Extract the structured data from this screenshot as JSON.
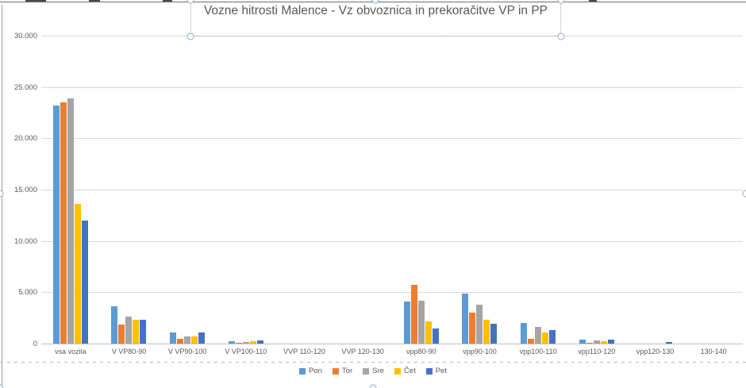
{
  "chart_data": {
    "type": "bar",
    "title": "Vozne hitrosti Malence - Vz obvoznica in prekoračitve VP in PP",
    "xlabel": "",
    "ylabel": "",
    "ylim": [
      0,
      30000
    ],
    "grid": true,
    "legend_position": "bottom",
    "yticks": [
      {
        "value": 0,
        "label": "0"
      },
      {
        "value": 5000,
        "label": "5.000"
      },
      {
        "value": 10000,
        "label": "10.000"
      },
      {
        "value": 15000,
        "label": "15.000"
      },
      {
        "value": 20000,
        "label": "20.000"
      },
      {
        "value": 25000,
        "label": "25.000"
      },
      {
        "value": 30000,
        "label": "30.000"
      }
    ],
    "categories": [
      "vsa vozila",
      "V VP80-90",
      "V VP90-100",
      "V VP100-110",
      "VVP 110-120",
      "VVP 120-130",
      "vpp80-90",
      "vpp90-100",
      "vpp100-110",
      "vpp110-120",
      "vpp120-130",
      "130-140"
    ],
    "series": [
      {
        "name": "Pon",
        "color": "#5B9BD5",
        "values": [
          23200,
          3600,
          1100,
          250,
          0,
          0,
          4100,
          4900,
          2000,
          400,
          0,
          0
        ]
      },
      {
        "name": "Tor",
        "color": "#ED7D31",
        "values": [
          23500,
          1850,
          500,
          50,
          0,
          0,
          5700,
          3000,
          500,
          50,
          0,
          0
        ]
      },
      {
        "name": "Sre",
        "color": "#A5A5A5",
        "values": [
          23900,
          2650,
          700,
          150,
          0,
          0,
          4200,
          3800,
          1650,
          300,
          0,
          0
        ]
      },
      {
        "name": "Čet",
        "color": "#FFC000",
        "values": [
          13600,
          2350,
          700,
          200,
          0,
          0,
          2200,
          2300,
          1050,
          250,
          0,
          0
        ]
      },
      {
        "name": "Pet",
        "color": "#4472C4",
        "values": [
          12000,
          2300,
          1050,
          300,
          0,
          0,
          1450,
          1950,
          1300,
          400,
          150,
          0
        ]
      }
    ]
  },
  "colors": {
    "gridline": "#d9d9d9",
    "axis_line": "#bfbfbf",
    "label_text": "#595959",
    "selection_handle_border": "#8aa8cf"
  }
}
